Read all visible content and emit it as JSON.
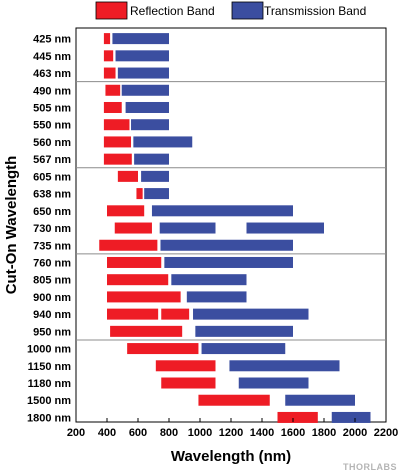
{
  "chart_data": {
    "type": "bar",
    "orientation": "horizontal-range",
    "xlabel": "Wavelength (nm)",
    "ylabel": "Cut-On Wavelength",
    "xlim": [
      200,
      2200
    ],
    "xticks": [
      200,
      400,
      600,
      800,
      1000,
      1200,
      1400,
      1600,
      1800,
      2000,
      2200
    ],
    "grid": false,
    "legend_position": "top",
    "categories": [
      "425 nm",
      "445 nm",
      "463 nm",
      "490 nm",
      "505 nm",
      "550 nm",
      "560 nm",
      "567 nm",
      "605 nm",
      "638 nm",
      "650 nm",
      "730 nm",
      "735 nm",
      "760 nm",
      "805 nm",
      "900 nm",
      "940 nm",
      "950 nm",
      "1000 nm",
      "1150 nm",
      "1180 nm",
      "1500 nm",
      "1800 nm"
    ],
    "group_breaks_after": [
      "463 nm",
      "567 nm",
      "735 nm",
      "950 nm"
    ],
    "series": [
      {
        "name": "Reflection Band",
        "color": "#ee1c25",
        "ranges": [
          [
            [
              380,
              420
            ]
          ],
          [
            [
              380,
              440
            ]
          ],
          [
            [
              380,
              455
            ]
          ],
          [
            [
              390,
              485
            ]
          ],
          [
            [
              380,
              495
            ]
          ],
          [
            [
              380,
              545
            ]
          ],
          [
            [
              380,
              555
            ]
          ],
          [
            [
              380,
              560
            ]
          ],
          [
            [
              470,
              600
            ]
          ],
          [
            [
              590,
              630
            ]
          ],
          [
            [
              400,
              640
            ]
          ],
          [
            [
              450,
              690
            ]
          ],
          [
            [
              350,
              725
            ]
          ],
          [
            [
              400,
              750
            ]
          ],
          [
            [
              400,
              795
            ]
          ],
          [
            [
              400,
              875
            ]
          ],
          [
            [
              400,
              730
            ],
            [
              750,
              930
            ]
          ],
          [
            [
              420,
              885
            ]
          ],
          [
            [
              530,
              990
            ]
          ],
          [
            [
              715,
              1100
            ]
          ],
          [
            [
              750,
              1100
            ]
          ],
          [
            [
              990,
              1450
            ]
          ],
          [
            [
              1500,
              1760
            ]
          ]
        ]
      },
      {
        "name": "Transmission Band",
        "color": "#3b4ea0",
        "ranges": [
          [
            [
              435,
              800
            ]
          ],
          [
            [
              455,
              800
            ]
          ],
          [
            [
              470,
              800
            ]
          ],
          [
            [
              495,
              800
            ]
          ],
          [
            [
              520,
              800
            ]
          ],
          [
            [
              555,
              800
            ]
          ],
          [
            [
              570,
              950
            ]
          ],
          [
            [
              575,
              800
            ]
          ],
          [
            [
              620,
              800
            ]
          ],
          [
            [
              640,
              800
            ]
          ],
          [
            [
              690,
              1600
            ]
          ],
          [
            [
              740,
              1100
            ],
            [
              1300,
              1800
            ]
          ],
          [
            [
              745,
              1600
            ]
          ],
          [
            [
              770,
              1600
            ]
          ],
          [
            [
              815,
              1300
            ]
          ],
          [
            [
              915,
              1300
            ]
          ],
          [
            [
              955,
              1700
            ]
          ],
          [
            [
              970,
              1600
            ]
          ],
          [
            [
              1010,
              1550
            ]
          ],
          [
            [
              1190,
              1900
            ]
          ],
          [
            [
              1250,
              1700
            ]
          ],
          [
            [
              1550,
              2000
            ]
          ],
          [
            [
              1850,
              2100
            ]
          ]
        ]
      }
    ]
  },
  "footer": {
    "brand": "THORLABS"
  }
}
